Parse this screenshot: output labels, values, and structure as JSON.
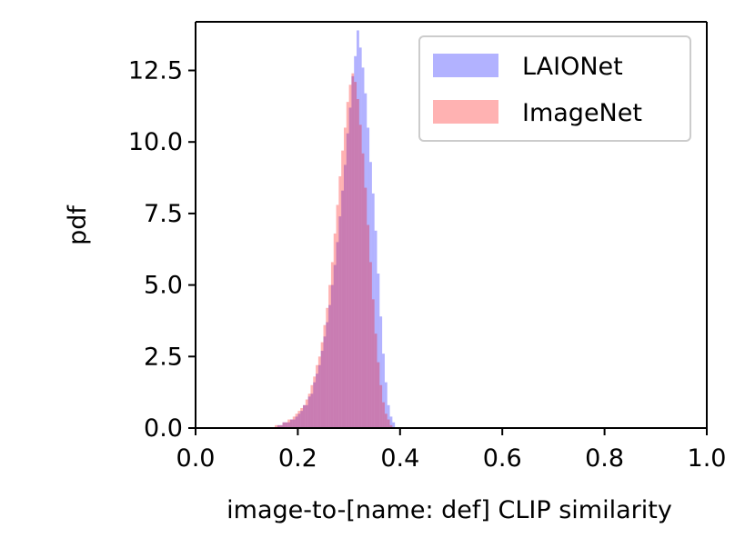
{
  "chart_data": {
    "type": "histogram",
    "title": "",
    "xlabel": "image-to-[name: def] CLIP similarity",
    "ylabel": "pdf",
    "xlim": [
      0.0,
      1.0
    ],
    "ylim": [
      0.0,
      14.2
    ],
    "xticks": [
      "0.0",
      "0.2",
      "0.4",
      "0.6",
      "0.8",
      "1.0"
    ],
    "yticks": [
      "0.0",
      "2.5",
      "5.0",
      "7.5",
      "10.0",
      "12.5"
    ],
    "grid": false,
    "legend_position": "top-right",
    "bin_width": 0.005,
    "series": [
      {
        "name": "LAIONet",
        "color": "#0000ff",
        "opacity": 0.3,
        "bins": [
          [
            0.16,
            0.1
          ],
          [
            0.165,
            0.1
          ],
          [
            0.17,
            0.2
          ],
          [
            0.175,
            0.2
          ],
          [
            0.18,
            0.2
          ],
          [
            0.185,
            0.3
          ],
          [
            0.19,
            0.3
          ],
          [
            0.195,
            0.4
          ],
          [
            0.2,
            0.5
          ],
          [
            0.205,
            0.6
          ],
          [
            0.21,
            0.8
          ],
          [
            0.215,
            0.8
          ],
          [
            0.22,
            1.1
          ],
          [
            0.225,
            1.2
          ],
          [
            0.23,
            1.6
          ],
          [
            0.235,
            1.9
          ],
          [
            0.24,
            2.2
          ],
          [
            0.245,
            2.7
          ],
          [
            0.25,
            3.2
          ],
          [
            0.255,
            3.7
          ],
          [
            0.26,
            4.3
          ],
          [
            0.265,
            5.0
          ],
          [
            0.27,
            5.7
          ],
          [
            0.275,
            6.5
          ],
          [
            0.28,
            7.4
          ],
          [
            0.285,
            8.3
          ],
          [
            0.29,
            9.2
          ],
          [
            0.295,
            10.3
          ],
          [
            0.3,
            11.2
          ],
          [
            0.305,
            12.3
          ],
          [
            0.31,
            13.0
          ],
          [
            0.315,
            13.9
          ],
          [
            0.32,
            13.3
          ],
          [
            0.325,
            12.6
          ],
          [
            0.33,
            11.7
          ],
          [
            0.335,
            10.5
          ],
          [
            0.34,
            9.3
          ],
          [
            0.345,
            8.2
          ],
          [
            0.35,
            6.9
          ],
          [
            0.355,
            5.4
          ],
          [
            0.36,
            3.9
          ],
          [
            0.365,
            2.6
          ],
          [
            0.37,
            1.6
          ],
          [
            0.375,
            0.8
          ],
          [
            0.38,
            0.4
          ],
          [
            0.385,
            0.2
          ]
        ]
      },
      {
        "name": "ImageNet",
        "color": "#ff0000",
        "opacity": 0.3,
        "bins": [
          [
            0.155,
            0.1
          ],
          [
            0.16,
            0.1
          ],
          [
            0.165,
            0.1
          ],
          [
            0.17,
            0.2
          ],
          [
            0.175,
            0.2
          ],
          [
            0.18,
            0.3
          ],
          [
            0.185,
            0.3
          ],
          [
            0.19,
            0.4
          ],
          [
            0.195,
            0.5
          ],
          [
            0.2,
            0.6
          ],
          [
            0.205,
            0.7
          ],
          [
            0.21,
            0.8
          ],
          [
            0.215,
            1.0
          ],
          [
            0.22,
            1.2
          ],
          [
            0.225,
            1.5
          ],
          [
            0.23,
            1.8
          ],
          [
            0.235,
            2.2
          ],
          [
            0.24,
            2.5
          ],
          [
            0.245,
            3.0
          ],
          [
            0.25,
            3.6
          ],
          [
            0.255,
            4.2
          ],
          [
            0.26,
            5.0
          ],
          [
            0.265,
            5.8
          ],
          [
            0.27,
            6.8
          ],
          [
            0.275,
            7.8
          ],
          [
            0.28,
            8.8
          ],
          [
            0.285,
            9.7
          ],
          [
            0.29,
            10.5
          ],
          [
            0.295,
            11.4
          ],
          [
            0.3,
            12.0
          ],
          [
            0.305,
            12.4
          ],
          [
            0.31,
            12.1
          ],
          [
            0.315,
            11.5
          ],
          [
            0.32,
            10.6
          ],
          [
            0.325,
            9.6
          ],
          [
            0.33,
            8.4
          ],
          [
            0.335,
            7.1
          ],
          [
            0.34,
            5.8
          ],
          [
            0.345,
            4.5
          ],
          [
            0.35,
            3.3
          ],
          [
            0.355,
            2.3
          ],
          [
            0.36,
            1.5
          ],
          [
            0.365,
            0.9
          ],
          [
            0.37,
            0.5
          ],
          [
            0.375,
            0.3
          ],
          [
            0.38,
            0.1
          ]
        ]
      }
    ]
  }
}
